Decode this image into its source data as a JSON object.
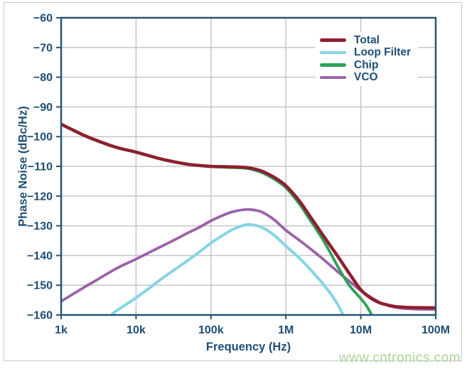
{
  "figure": {
    "watermark": "www.cntronics.com",
    "colors": {
      "text": "#1d4e74",
      "frame": "#275572",
      "grid": "#c5c5cc",
      "watermark": "#a9d396",
      "border": "#cbcbcb",
      "background": "#ffffff"
    }
  },
  "chart_data": {
    "type": "line",
    "title": "",
    "xlabel": "Frequency (Hz)",
    "ylabel": "Phase Noise (dBc/Hz)",
    "x_scale": "log",
    "grid": true,
    "legend_position": "top-right",
    "xlim": [
      1000,
      100000000
    ],
    "ylim": [
      -160,
      -60
    ],
    "x_tick_values": [
      1000,
      10000,
      100000,
      1000000,
      10000000,
      100000000
    ],
    "x_tick_labels": [
      "1k",
      "10k",
      "100k",
      "1M",
      "10M",
      "100M"
    ],
    "y_tick_values": [
      -60,
      -70,
      -80,
      -90,
      -100,
      -110,
      -120,
      -130,
      -140,
      -150,
      -160
    ],
    "y_tick_labels": [
      "−60",
      "−70",
      "−80",
      "−90",
      "−100",
      "−110",
      "−120",
      "−130",
      "−140",
      "−150",
      "−160"
    ],
    "draw_order": [
      "Loop Filter",
      "VCO",
      "Chip",
      "Total"
    ],
    "series": [
      {
        "name": "Total",
        "color": "#8e1f2f",
        "width": 4.5,
        "points": [
          [
            1000,
            -95.8
          ],
          [
            1500,
            -98.0
          ],
          [
            2000,
            -99.5
          ],
          [
            3000,
            -101.3
          ],
          [
            5000,
            -103.3
          ],
          [
            7000,
            -104.3
          ],
          [
            10000,
            -105.2
          ],
          [
            20000,
            -107.3
          ],
          [
            30000,
            -108.3
          ],
          [
            50000,
            -109.3
          ],
          [
            70000,
            -109.7
          ],
          [
            100000,
            -110.0
          ],
          [
            150000,
            -110.1
          ],
          [
            200000,
            -110.2
          ],
          [
            300000,
            -110.4
          ],
          [
            400000,
            -111.0
          ],
          [
            500000,
            -111.8
          ],
          [
            700000,
            -113.7
          ],
          [
            1000000,
            -116.5
          ],
          [
            1500000,
            -121.5
          ],
          [
            2000000,
            -126.0
          ],
          [
            3000000,
            -132.5
          ],
          [
            4000000,
            -137.0
          ],
          [
            5000000,
            -140.5
          ],
          [
            7000000,
            -146.0
          ],
          [
            10000000,
            -151.5
          ],
          [
            13000000,
            -154.0
          ],
          [
            17000000,
            -155.7
          ],
          [
            20000000,
            -156.3
          ],
          [
            30000000,
            -157.2
          ],
          [
            50000000,
            -157.5
          ],
          [
            100000000,
            -157.6
          ]
        ]
      },
      {
        "name": "Loop Filter",
        "color": "#85d5e4",
        "width": 4,
        "points": [
          [
            4500,
            -160.8
          ],
          [
            5000,
            -159.3
          ],
          [
            7000,
            -156.8
          ],
          [
            10000,
            -154.2
          ],
          [
            15000,
            -151.0
          ],
          [
            20000,
            -148.6
          ],
          [
            30000,
            -145.4
          ],
          [
            50000,
            -141.5
          ],
          [
            70000,
            -138.8
          ],
          [
            100000,
            -135.8
          ],
          [
            150000,
            -132.9
          ],
          [
            200000,
            -131.1
          ],
          [
            300000,
            -129.6
          ],
          [
            400000,
            -129.9
          ],
          [
            500000,
            -130.8
          ],
          [
            700000,
            -133.2
          ],
          [
            1000000,
            -136.8
          ],
          [
            1500000,
            -140.8
          ],
          [
            2000000,
            -144.0
          ],
          [
            3000000,
            -149.0
          ],
          [
            4000000,
            -153.0
          ],
          [
            5000000,
            -156.8
          ],
          [
            6000000,
            -160.8
          ]
        ]
      },
      {
        "name": "Chip",
        "color": "#2ca157",
        "width": 3.8,
        "points": [
          [
            1000,
            -95.9
          ],
          [
            2000,
            -99.6
          ],
          [
            3000,
            -101.4
          ],
          [
            5000,
            -103.4
          ],
          [
            10000,
            -105.3
          ],
          [
            20000,
            -107.4
          ],
          [
            30000,
            -108.4
          ],
          [
            50000,
            -109.4
          ],
          [
            100000,
            -110.1
          ],
          [
            200000,
            -110.4
          ],
          [
            300000,
            -110.7
          ],
          [
            400000,
            -111.4
          ],
          [
            500000,
            -112.3
          ],
          [
            700000,
            -114.3
          ],
          [
            1000000,
            -117.2
          ],
          [
            1500000,
            -122.5
          ],
          [
            2000000,
            -127.2
          ],
          [
            3000000,
            -134.0
          ],
          [
            4000000,
            -139.5
          ],
          [
            5000000,
            -144.0
          ],
          [
            7000000,
            -150.0
          ],
          [
            10000000,
            -154.5
          ],
          [
            12000000,
            -157.0
          ],
          [
            14500000,
            -160.8
          ]
        ]
      },
      {
        "name": "VCO",
        "color": "#9c62a8",
        "width": 3.8,
        "points": [
          [
            1000,
            -155.4
          ],
          [
            2000,
            -150.8
          ],
          [
            3000,
            -148.2
          ],
          [
            5000,
            -144.9
          ],
          [
            7000,
            -143.0
          ],
          [
            10000,
            -141.2
          ],
          [
            20000,
            -137.4
          ],
          [
            30000,
            -135.2
          ],
          [
            50000,
            -132.3
          ],
          [
            70000,
            -130.5
          ],
          [
            100000,
            -128.3
          ],
          [
            150000,
            -126.3
          ],
          [
            200000,
            -125.2
          ],
          [
            300000,
            -124.5
          ],
          [
            400000,
            -124.8
          ],
          [
            500000,
            -125.6
          ],
          [
            700000,
            -128.0
          ],
          [
            1000000,
            -131.5
          ],
          [
            1500000,
            -134.8
          ],
          [
            2000000,
            -137.2
          ],
          [
            3000000,
            -140.8
          ],
          [
            5000000,
            -145.6
          ],
          [
            7000000,
            -148.6
          ],
          [
            10000000,
            -151.8
          ],
          [
            15000000,
            -154.7
          ],
          [
            20000000,
            -156.3
          ],
          [
            30000000,
            -157.5
          ],
          [
            50000000,
            -158.0
          ],
          [
            100000000,
            -158.1
          ]
        ]
      }
    ]
  }
}
